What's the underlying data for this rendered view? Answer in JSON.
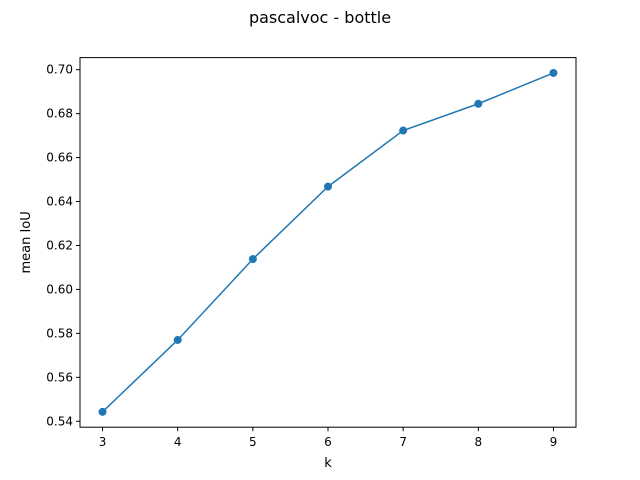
{
  "chart_data": {
    "type": "line",
    "title": "pascalvoc - bottle",
    "xlabel": "k",
    "ylabel": "mean IoU",
    "x": [
      3,
      4,
      5,
      6,
      7,
      8,
      9
    ],
    "series": [
      {
        "values": [
          0.5443,
          0.577,
          0.6138,
          0.6468,
          0.6723,
          0.6845,
          0.6985
        ]
      }
    ],
    "xlim": [
      2.7,
      9.3
    ],
    "ylim": [
      0.5373,
      0.7055
    ],
    "xticks": [
      3,
      4,
      5,
      6,
      7,
      8,
      9
    ],
    "xtick_labels": [
      "3",
      "4",
      "5",
      "6",
      "7",
      "8",
      "9"
    ],
    "yticks": [
      0.54,
      0.56,
      0.58,
      0.6,
      0.62,
      0.64,
      0.66,
      0.68,
      0.7
    ],
    "ytick_labels": [
      "0.54",
      "0.56",
      "0.58",
      "0.60",
      "0.62",
      "0.64",
      "0.66",
      "0.68",
      "0.70"
    ],
    "grid": false,
    "markers": true,
    "color": "#1f77b4"
  }
}
